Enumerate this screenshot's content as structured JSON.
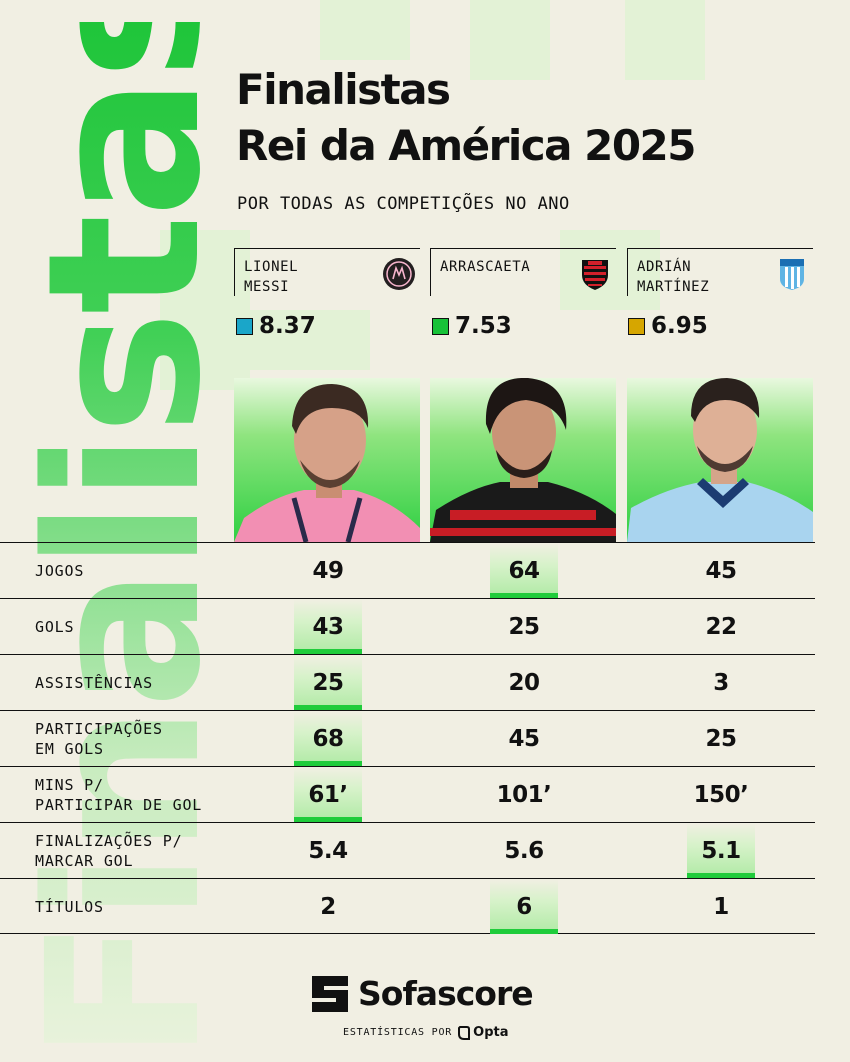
{
  "side_word": "Finalistas",
  "title_line1": "Finalistas",
  "title_line2": "Rei da América 2025",
  "subtitle": "POR TODAS AS COMPETIÇÕES NO ANO",
  "players": [
    {
      "name": "LIONEL\nMESSI",
      "rating": "8.37",
      "rating_color": "#1aa6c9",
      "crest": "inter-miami-crest-icon"
    },
    {
      "name": "ARRASCAETA",
      "rating": "7.53",
      "rating_color": "#17c238",
      "crest": "flamengo-crest-icon"
    },
    {
      "name": "ADRIÁN\nMARTÍNEZ",
      "rating": "6.95",
      "rating_color": "#d6a600",
      "crest": "racing-crest-icon"
    }
  ],
  "stats": [
    {
      "label": "JOGOS",
      "values": [
        "49",
        "64",
        "45"
      ],
      "best": 1
    },
    {
      "label": "GOLS",
      "values": [
        "43",
        "25",
        "22"
      ],
      "best": 0
    },
    {
      "label": "ASSISTÊNCIAS",
      "values": [
        "25",
        "20",
        "3"
      ],
      "best": 0
    },
    {
      "label": "PARTICIPAÇÕES\nEM GOLS",
      "values": [
        "68",
        "45",
        "25"
      ],
      "best": 0
    },
    {
      "label": "MINS P/\nPARTICIPAR DE GOL",
      "values": [
        "61’",
        "101’",
        "150’"
      ],
      "best": 0
    },
    {
      "label": "FINALIZAÇÕES P/\nMARCAR GOL",
      "values": [
        "5.4",
        "5.6",
        "5.1"
      ],
      "best": 2
    },
    {
      "label": "TÍTULOS",
      "values": [
        "2",
        "6",
        "1"
      ],
      "best": 1
    }
  ],
  "footer": {
    "brand": "Sofascore",
    "credit_label": "ESTATÍSTICAS POR",
    "credit_brand": "Opta"
  },
  "colors": {
    "accent": "#1fcc3b",
    "background": "#f1efe3"
  }
}
